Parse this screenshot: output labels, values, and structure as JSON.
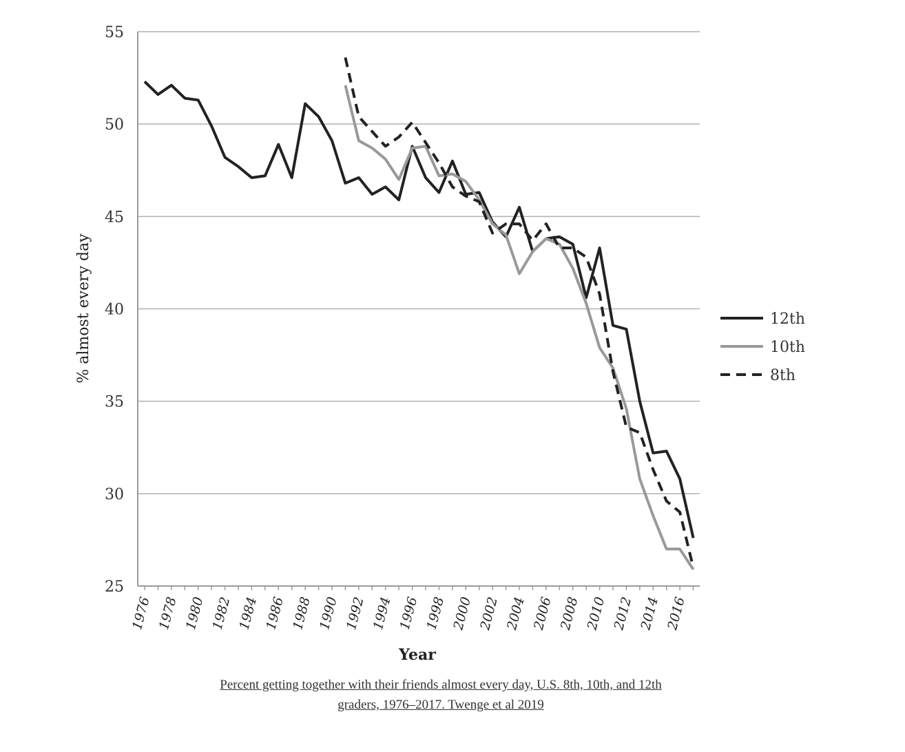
{
  "chart_data": {
    "type": "line",
    "title": "",
    "xlabel": "Year",
    "ylabel": "% almost every day",
    "ylim": [
      25,
      55
    ],
    "yticks": [
      25,
      30,
      35,
      40,
      45,
      50,
      55
    ],
    "xlim": [
      1976,
      2017
    ],
    "xticks": [
      "1976",
      "1978",
      "1980",
      "1982",
      "1984",
      "1986",
      "1988",
      "1990",
      "1992",
      "1994",
      "1996",
      "1998",
      "2000",
      "2002",
      "2004",
      "2006",
      "2008",
      "2010",
      "2012",
      "2014",
      "2016"
    ],
    "grid": "horizontal",
    "legend_position": "right",
    "series": [
      {
        "name": "12th",
        "color": "#222222",
        "style": "solid",
        "x": [
          1976,
          1977,
          1978,
          1979,
          1980,
          1981,
          1982,
          1983,
          1984,
          1985,
          1986,
          1987,
          1988,
          1989,
          1990,
          1991,
          1992,
          1993,
          1994,
          1995,
          1996,
          1997,
          1998,
          1999,
          2000,
          2001,
          2002,
          2003,
          2004,
          2005,
          2006,
          2007,
          2008,
          2009,
          2010,
          2011,
          2012,
          2013,
          2014,
          2015,
          2016,
          2017
        ],
        "values": [
          52.3,
          51.6,
          52.1,
          51.4,
          51.3,
          49.9,
          48.2,
          47.7,
          47.1,
          47.2,
          48.9,
          47.1,
          51.1,
          50.4,
          49.1,
          46.8,
          47.1,
          46.2,
          46.6,
          45.9,
          48.8,
          47.1,
          46.3,
          48.0,
          46.2,
          46.3,
          44.7,
          43.9,
          45.5,
          43.1,
          43.8,
          43.9,
          43.5,
          40.6,
          43.3,
          39.1,
          38.9,
          35.0,
          32.2,
          32.3,
          30.8,
          27.6
        ]
      },
      {
        "name": "10th",
        "color": "#999999",
        "style": "solid",
        "x": [
          1991,
          1992,
          1993,
          1994,
          1995,
          1996,
          1997,
          1998,
          1999,
          2000,
          2001,
          2002,
          2003,
          2004,
          2005,
          2006,
          2007,
          2008,
          2009,
          2010,
          2011,
          2012,
          2013,
          2014,
          2015,
          2016,
          2017
        ],
        "values": [
          52.1,
          49.1,
          48.7,
          48.1,
          47.0,
          48.7,
          48.8,
          47.2,
          47.3,
          46.9,
          45.9,
          44.6,
          44.0,
          41.9,
          43.1,
          43.8,
          43.5,
          42.2,
          40.3,
          37.9,
          36.8,
          34.6,
          30.8,
          28.8,
          27.0,
          27.0,
          25.9
        ]
      },
      {
        "name": "8th",
        "color": "#222222",
        "style": "dashed",
        "x": [
          1991,
          1992,
          1993,
          1994,
          1995,
          1996,
          1997,
          1998,
          1999,
          2000,
          2001,
          2002,
          2003,
          2004,
          2005,
          2006,
          2007,
          2008,
          2009,
          2010,
          2011,
          2012,
          2013,
          2014,
          2015,
          2016,
          2017
        ],
        "values": [
          53.6,
          50.4,
          49.6,
          48.8,
          49.3,
          50.1,
          49.0,
          47.9,
          46.6,
          46.1,
          45.8,
          44.1,
          44.6,
          44.6,
          43.7,
          44.6,
          43.3,
          43.3,
          42.8,
          40.8,
          36.6,
          33.6,
          33.3,
          31.3,
          29.6,
          29.0,
          26.0
        ]
      }
    ]
  },
  "caption": {
    "line1": "Percent getting together with their friends almost every day, U.S. 8th, 10th, and 12th",
    "line2": "graders, 1976–2017. Twenge et al 2019"
  }
}
